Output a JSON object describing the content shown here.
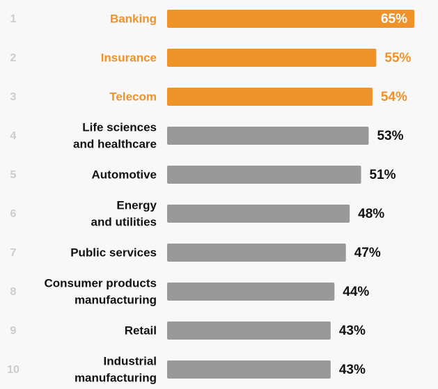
{
  "chart_data": {
    "type": "hbar",
    "ranks": [
      1,
      2,
      3,
      4,
      5,
      6,
      7,
      8,
      9,
      10
    ],
    "categories": [
      [
        "Banking"
      ],
      [
        "Insurance"
      ],
      [
        "Telecom"
      ],
      [
        "Life sciences",
        "and healthcare"
      ],
      [
        "Automotive"
      ],
      [
        "Energy",
        "and utilities"
      ],
      [
        "Public services"
      ],
      [
        "Consumer products",
        "manufacturing"
      ],
      [
        "Retail"
      ],
      [
        "Industrial",
        "manufacturing"
      ]
    ],
    "values": [
      65,
      55,
      54,
      53,
      51,
      48,
      47,
      44,
      43,
      43
    ],
    "value_labels": [
      "65%",
      "55%",
      "54%",
      "53%",
      "51%",
      "48%",
      "47%",
      "44%",
      "43%",
      "43%"
    ],
    "colors": [
      "#f0922a",
      "#f0922a",
      "#f0922a",
      "#999999",
      "#999999",
      "#999999",
      "#999999",
      "#999999",
      "#999999",
      "#999999"
    ],
    "label_colors": [
      "#f0922a",
      "#f0922a",
      "#f0922a",
      "#111111",
      "#111111",
      "#111111",
      "#111111",
      "#111111",
      "#111111",
      "#111111"
    ]
  }
}
